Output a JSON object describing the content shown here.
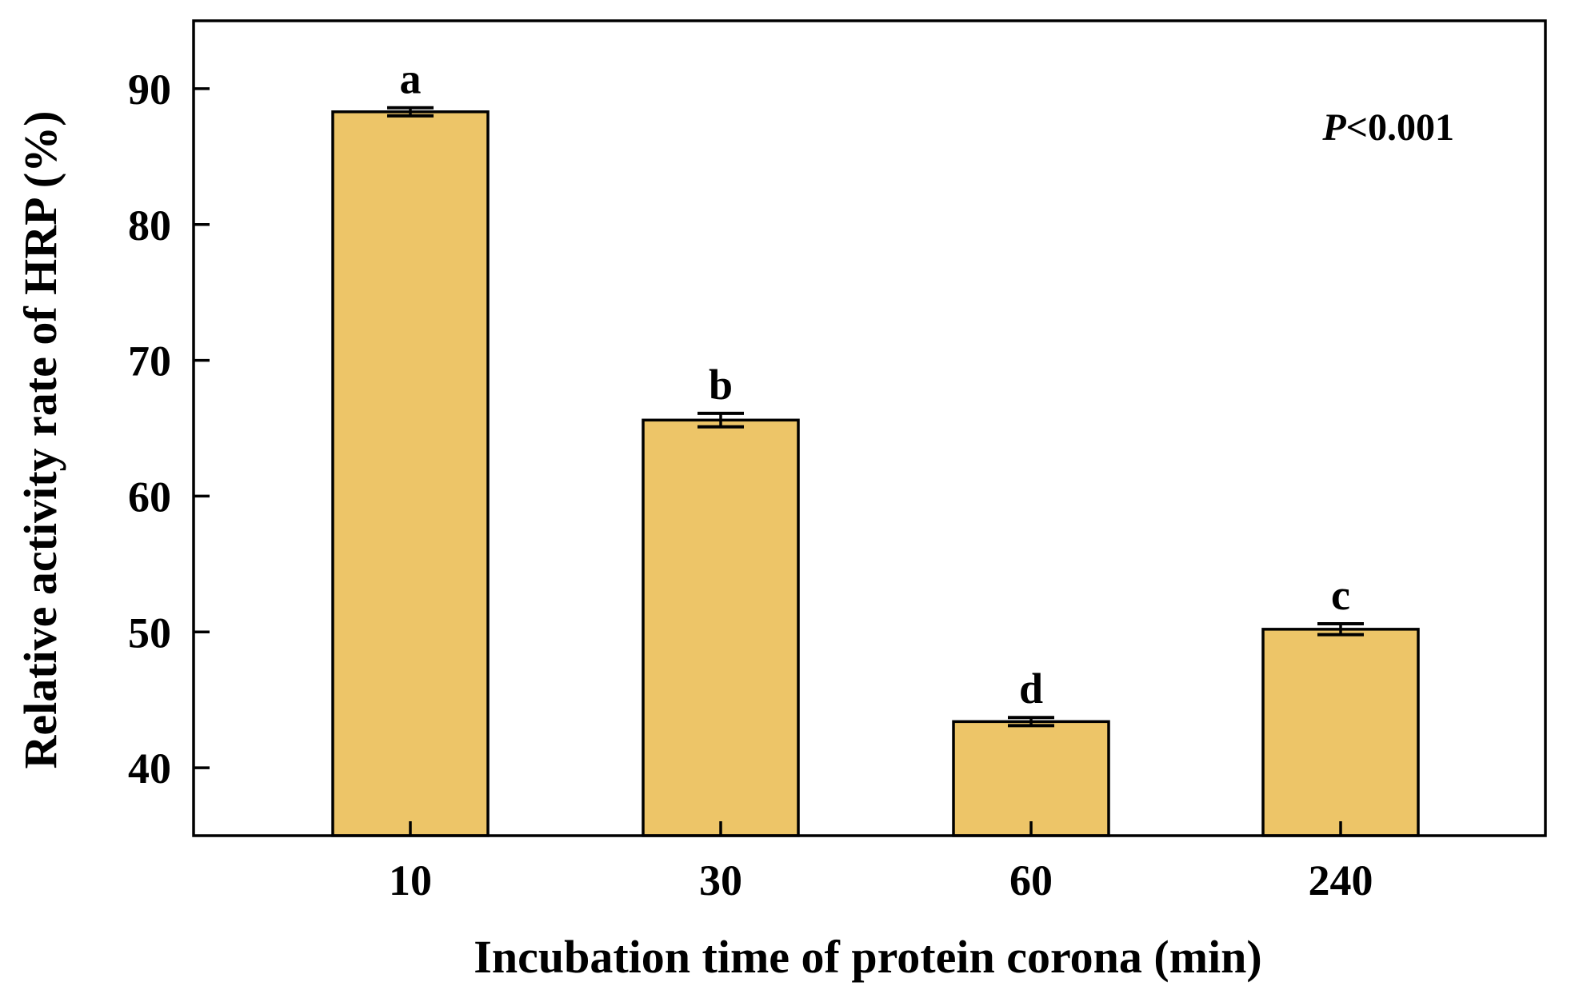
{
  "chart_data": {
    "type": "bar",
    "title": "",
    "xlabel": "Incubation time of protein corona (min)",
    "ylabel": "Relative activity rate of HRP (%)",
    "categories": [
      "10",
      "30",
      "60",
      "240"
    ],
    "values": [
      88.3,
      65.6,
      43.4,
      50.2
    ],
    "errors": [
      0.3,
      0.5,
      0.3,
      0.4
    ],
    "significance_letters": [
      "a",
      "b",
      "d",
      "c"
    ],
    "annotation": {
      "p_italic": "P",
      "p_rest": "<0.001"
    },
    "ylim": [
      35,
      95
    ],
    "yticks": [
      40,
      50,
      60,
      70,
      80,
      90
    ],
    "ytick_labels": [
      "40",
      "50",
      "60",
      "70",
      "80",
      "90"
    ],
    "grid": false,
    "colors": {
      "bar_fill": "#EDC568",
      "bar_edge": "#000000",
      "axis": "#000000"
    }
  }
}
